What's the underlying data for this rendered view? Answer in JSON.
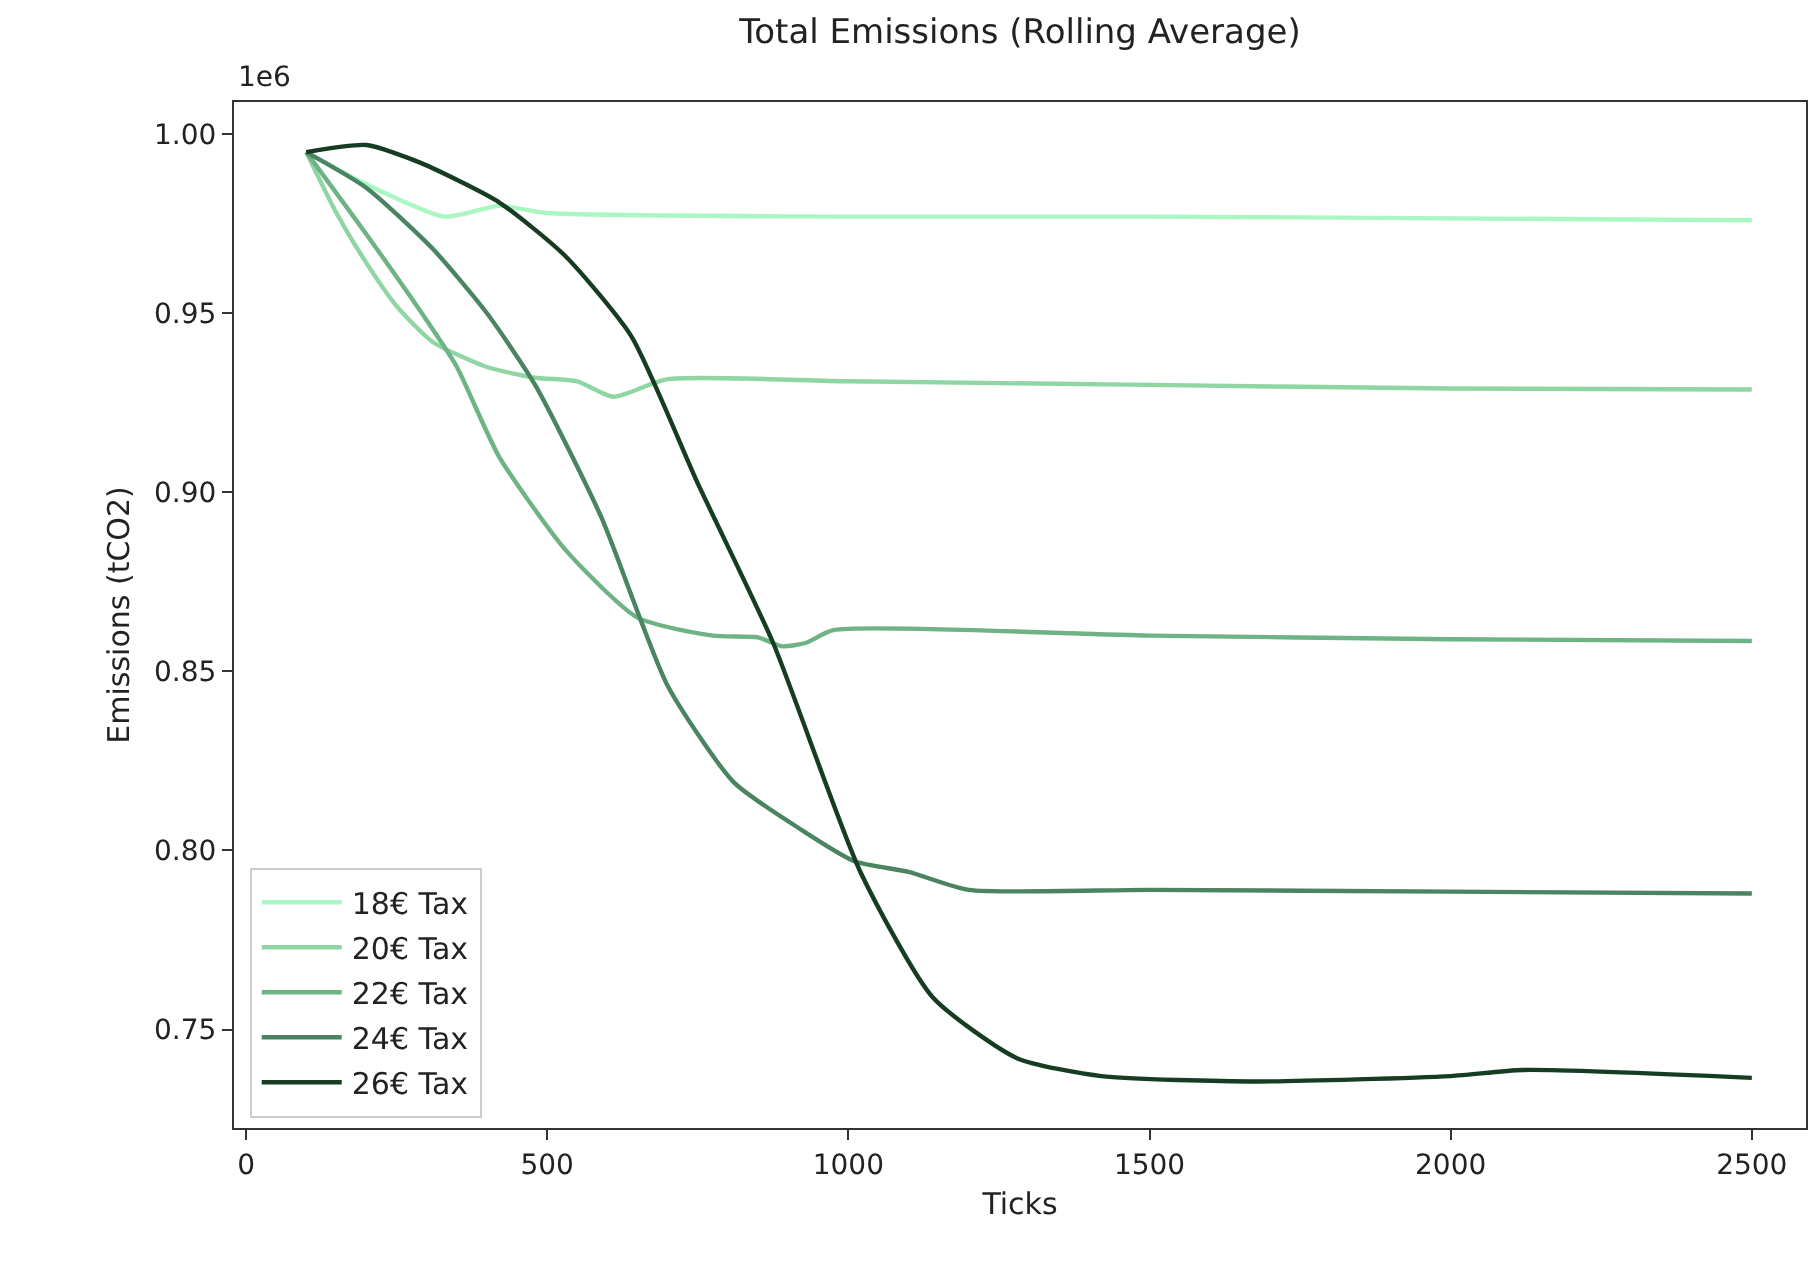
{
  "chart_data": {
    "type": "line",
    "title": "Total Emissions (Rolling Average)",
    "xlabel": "Ticks",
    "ylabel": "Emissions (tCO2)",
    "annotations": [
      "1e6"
    ],
    "series": [
      {
        "name": "18€ Tax",
        "color": "#abf7c4",
        "x": [
          100,
          200,
          330,
          420,
          500,
          1000,
          1500,
          2000,
          2500
        ],
        "values": [
          0.995,
          0.986,
          0.977,
          0.98,
          0.978,
          0.977,
          0.977,
          0.9765,
          0.976
        ]
      },
      {
        "name": "20€ Tax",
        "color": "#90d6a4",
        "x": [
          100,
          150,
          200,
          250,
          310,
          400,
          480,
          550,
          610,
          700,
          1000,
          1500,
          2000,
          2500
        ],
        "values": [
          0.995,
          0.978,
          0.964,
          0.952,
          0.942,
          0.935,
          0.932,
          0.931,
          0.9267,
          0.9316,
          0.931,
          0.93,
          0.929,
          0.9287
        ]
      },
      {
        "name": "22€ Tax",
        "color": "#6eb384",
        "x": [
          100,
          200,
          300,
          350,
          420,
          530,
          650,
          775,
          850,
          890,
          930,
          975,
          1500,
          2000,
          2500
        ],
        "values": [
          0.995,
          0.972,
          0.948,
          0.935,
          0.91,
          0.884,
          0.865,
          0.86,
          0.8595,
          0.857,
          0.858,
          0.8615,
          0.86,
          0.859,
          0.8585
        ]
      },
      {
        "name": "24€ Tax",
        "color": "#4b8460",
        "x": [
          100,
          200,
          310,
          400,
          480,
          590,
          700,
          810,
          920,
          1010,
          1100,
          1200,
          1500,
          2000,
          2500
        ],
        "values": [
          0.995,
          0.985,
          0.968,
          0.95,
          0.93,
          0.893,
          0.846,
          0.819,
          0.806,
          0.797,
          0.794,
          0.789,
          0.789,
          0.7885,
          0.788
        ]
      },
      {
        "name": "26€ Tax",
        "color": "#163d22",
        "x": [
          100,
          200,
          290,
          420,
          530,
          640,
          750,
          875,
          1020,
          1140,
          1280,
          1420,
          1680,
          2000,
          2120,
          2500
        ],
        "values": [
          0.995,
          0.997,
          0.992,
          0.981,
          0.966,
          0.9435,
          0.9025,
          0.858,
          0.794,
          0.759,
          0.742,
          0.737,
          0.7355,
          0.737,
          0.7387,
          0.7365
        ]
      }
    ],
    "xlim": [
      -20,
      2590
    ],
    "xticks": [
      0,
      500,
      1000,
      1500,
      2000,
      2500
    ],
    "ylim": [
      0.7225,
      1.009
    ],
    "yticks": [
      {
        "value": 0.75,
        "label": "0.75"
      },
      {
        "value": 0.8,
        "label": "0.80"
      },
      {
        "value": 0.85,
        "label": "0.85"
      },
      {
        "value": 0.9,
        "label": "0.90"
      },
      {
        "value": 0.95,
        "label": "0.95"
      },
      {
        "value": 1.0,
        "label": "1.00"
      }
    ],
    "grid": false,
    "legend": "bottom left",
    "line_style": "solid",
    "marker": "none"
  }
}
